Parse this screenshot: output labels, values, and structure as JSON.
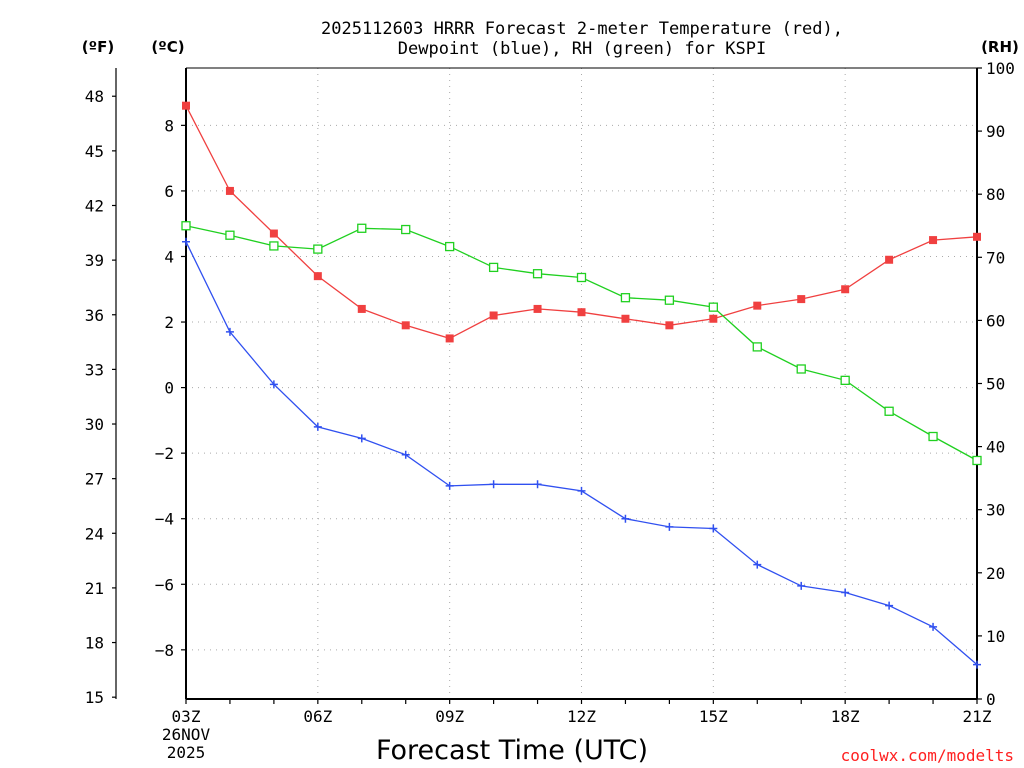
{
  "chart_data": {
    "type": "line",
    "title": [
      "2025112603 HRRR Forecast 2-meter Temperature (red),",
      "Dewpoint (blue), RH (green) for KSPI"
    ],
    "xlabel": "Forecast Time (UTC)",
    "credit": "coolwx.com/modelts",
    "date_label": [
      "26NOV",
      "2025"
    ],
    "x_ticks": [
      "03Z",
      "06Z",
      "09Z",
      "12Z",
      "15Z",
      "18Z",
      "21Z"
    ],
    "x_hours": [
      3,
      4,
      5,
      6,
      7,
      8,
      9,
      10,
      11,
      12,
      13,
      14,
      15,
      16,
      17,
      18,
      19,
      20,
      21
    ],
    "xlim": [
      3,
      21
    ],
    "unit_f": "(ºF)",
    "unit_c": "(ºC)",
    "unit_rh": "(RH)",
    "ylim_c": [
      -9.5,
      9.75
    ],
    "yticks_c": [
      "−8",
      "−6",
      "−4",
      "−2",
      "0",
      "2",
      "4",
      "6",
      "8"
    ],
    "yticks_f": [
      "15",
      "18",
      "21",
      "24",
      "27",
      "30",
      "33",
      "36",
      "39",
      "42",
      "45",
      "48"
    ],
    "ylim_rh": [
      0,
      100
    ],
    "yticks_rh": [
      "0",
      "10",
      "20",
      "30",
      "40",
      "50",
      "60",
      "70",
      "80",
      "90",
      "100"
    ],
    "series": [
      {
        "name": "Temperature",
        "axis": "c",
        "color": "#f04040",
        "marker": "square-filled",
        "values": [
          8.6,
          6.0,
          4.7,
          3.4,
          2.4,
          1.9,
          1.5,
          2.2,
          2.4,
          2.3,
          2.1,
          1.9,
          2.1,
          2.5,
          2.7,
          3.0,
          3.9,
          4.5,
          4.6
        ]
      },
      {
        "name": "Dewpoint",
        "axis": "c",
        "color": "#3050f0",
        "marker": "plus",
        "values": [
          4.45,
          1.7,
          0.1,
          -1.2,
          -1.55,
          -2.05,
          -3.0,
          -2.95,
          -2.95,
          -3.15,
          -4.0,
          -4.25,
          -4.3,
          -5.4,
          -6.05,
          -6.25,
          -6.65,
          -7.3,
          -8.45
        ]
      },
      {
        "name": "RH",
        "axis": "rh",
        "color": "#20d020",
        "marker": "square-open",
        "values": [
          75,
          73.5,
          71.8,
          71.3,
          74.6,
          74.4,
          71.7,
          68.4,
          67.4,
          66.8,
          63.6,
          63.2,
          62.1,
          55.8,
          52.3,
          50.5,
          45.6,
          41.6,
          37.8
        ]
      }
    ]
  }
}
